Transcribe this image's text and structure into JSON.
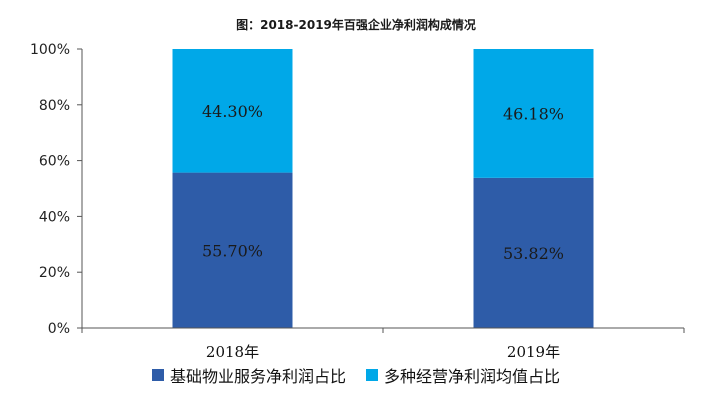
{
  "chart_data": {
    "type": "bar",
    "stacked": true,
    "title": "图：2018-2019年百强企业净利润构成情况",
    "categories": [
      "2018年",
      "2019年"
    ],
    "series": [
      {
        "name": "基础物业服务净利润占比",
        "values": [
          55.7,
          53.82
        ],
        "labels": [
          "55.70%",
          "53.82%"
        ],
        "color": "#2E5CA8"
      },
      {
        "name": "多种经营净利润均值占比",
        "values": [
          44.3,
          46.18
        ],
        "labels": [
          "44.30%",
          "46.18%"
        ],
        "color": "#00A8E8"
      }
    ],
    "ylim": [
      0,
      100
    ],
    "yticks": [
      "0%",
      "20%",
      "40%",
      "60%",
      "80%",
      "100%"
    ],
    "xlabel": "",
    "ylabel": "",
    "grid": false,
    "legend": "bottom"
  }
}
